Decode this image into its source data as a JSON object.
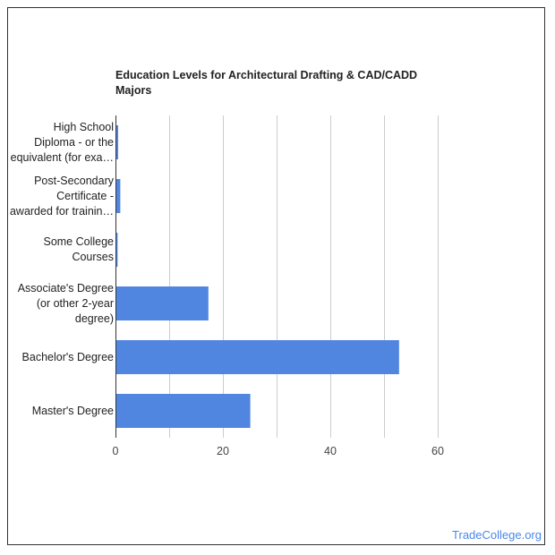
{
  "chart_data": {
    "type": "bar",
    "orientation": "horizontal",
    "title": "Education Levels for Architectural Drafting & CAD/CADD Majors",
    "title_lines": [
      "Education Levels for Architectural Drafting & CAD/CADD",
      "Majors"
    ],
    "categories": [
      "High School Diploma - or the equivalent (for example: GED)",
      "Post-Secondary Certificate - awarded for training completed after high school",
      "Some College Courses",
      "Associate's Degree (or other 2-year degree)",
      "Bachelor's Degree",
      "Master's Degree"
    ],
    "category_display_lines": [
      [
        "High School",
        "Diploma - or the",
        "equivalent (for exa…"
      ],
      [
        "Post-Secondary",
        "Certificate -",
        "awarded for trainin…"
      ],
      [
        "Some College",
        "Courses"
      ],
      [
        "Associate's Degree",
        "(or other 2-year",
        "degree)"
      ],
      [
        "Bachelor's Degree"
      ],
      [
        "Master's Degree"
      ]
    ],
    "values": [
      0.5,
      0.9,
      0.4,
      17.3,
      52.8,
      25.1
    ],
    "xlim": [
      0,
      70
    ],
    "xticks": [
      0,
      20,
      40,
      60
    ],
    "grid": true,
    "bar_color": "#5085e0",
    "xlabel": "",
    "ylabel": ""
  },
  "source": "TradeCollege.org",
  "colors": {
    "bar": "#5085e0",
    "grid": "#cccccc",
    "axis": "#333333",
    "source": "#4a86e8"
  }
}
